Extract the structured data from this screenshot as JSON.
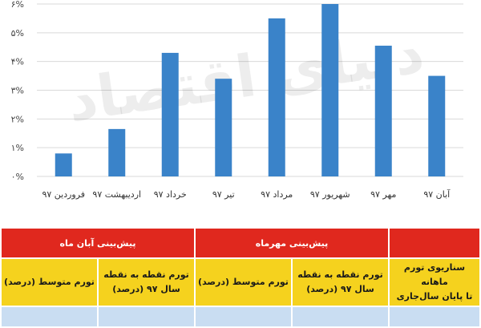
{
  "chart_data": {
    "type": "bar",
    "categories": [
      "فروردین ۹۷",
      "اردیبهشت ۹۷",
      "خرداد ۹۷",
      "تیر ۹۷",
      "مرداد ۹۷",
      "شهریور ۹۷",
      "مهر ۹۷",
      "آبان ۹۷"
    ],
    "values": [
      0.8,
      1.65,
      4.3,
      3.4,
      5.5,
      6.0,
      4.55,
      3.5
    ],
    "ylim": [
      0,
      6
    ],
    "yticks": [
      "۰%",
      "۱%",
      "۲%",
      "۳%",
      "۴%",
      "۵%",
      "۶%"
    ],
    "bar_color": "#3a83c9",
    "grid": true,
    "title": "",
    "xlabel": "",
    "ylabel": ""
  },
  "watermark": "دنیای اقتصاد",
  "table": {
    "header_mehr": "پیش‌بینی مهرماه",
    "header_aban": "پیش‌بینی آبان ماه",
    "scenario_line1": "سناریوی تورم ماهانه",
    "scenario_line2": "تا پایان سال‌جاری",
    "p2p_line1_mehr": "تورم نقطه به نقطه",
    "p2p_line2_mehr": "سال ۹۷ (درصد)",
    "avg_mehr": "تورم متوسط (درصد)",
    "p2p_line1_aban": "تورم نقطه به نقطه",
    "p2p_line2_aban": "سال ۹۷ (درصد)",
    "avg_aban": "تورم متوسط (درصد)"
  },
  "colors": {
    "header_red": "#e0281e",
    "subheader_yellow": "#f5d21e",
    "row_blue": "#c9ddf2",
    "grid": "#d9d9d9"
  }
}
